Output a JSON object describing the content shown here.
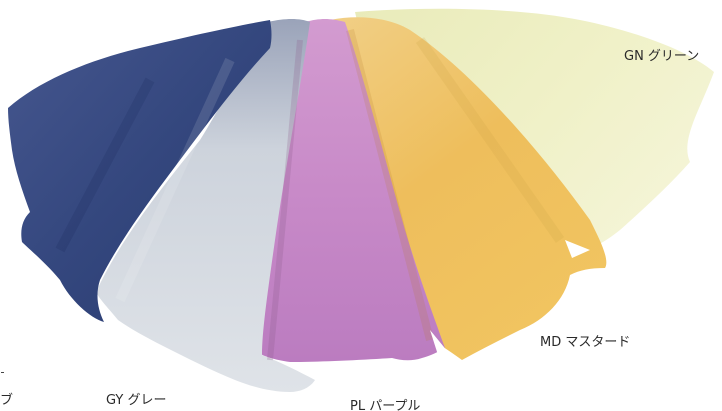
{
  "labels": {
    "green": "GN グリーン",
    "mustard": "MD マスタード",
    "gray": "GY グレー",
    "purple": "PL パープル",
    "edge_fragment": "ブ"
  },
  "swatches": [
    {
      "name": "navy",
      "color": "#3e5289"
    },
    {
      "name": "gray",
      "color": "#cdd3dc"
    },
    {
      "name": "purple",
      "color": "#c48ac4"
    },
    {
      "name": "mustard",
      "color": "#f0c060"
    },
    {
      "name": "green",
      "color": "#eef0c0"
    }
  ]
}
